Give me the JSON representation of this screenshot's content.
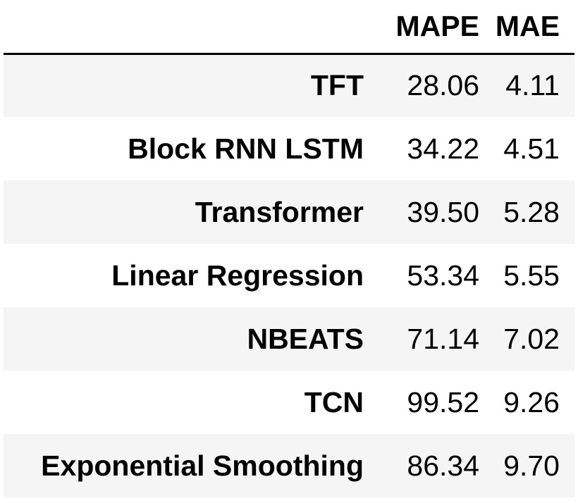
{
  "chart_data": {
    "type": "table",
    "columns": [
      "MAPE",
      "MAE"
    ],
    "rows": [
      {
        "model": "TFT",
        "mape": "28.06",
        "mae": "4.11"
      },
      {
        "model": "Block RNN LSTM",
        "mape": "34.22",
        "mae": "4.51"
      },
      {
        "model": "Transformer",
        "mape": "39.50",
        "mae": "5.28"
      },
      {
        "model": "Linear Regression",
        "mape": "53.34",
        "mae": "5.55"
      },
      {
        "model": "NBEATS",
        "mape": "71.14",
        "mae": "7.02"
      },
      {
        "model": "TCN",
        "mape": "99.52",
        "mae": "9.26"
      },
      {
        "model": "Exponential Smoothing",
        "mape": "86.34",
        "mae": "9.70"
      }
    ]
  },
  "colors": {
    "stripe": "#f5f5f5",
    "background": "#ffffff",
    "rule": "#000000"
  }
}
